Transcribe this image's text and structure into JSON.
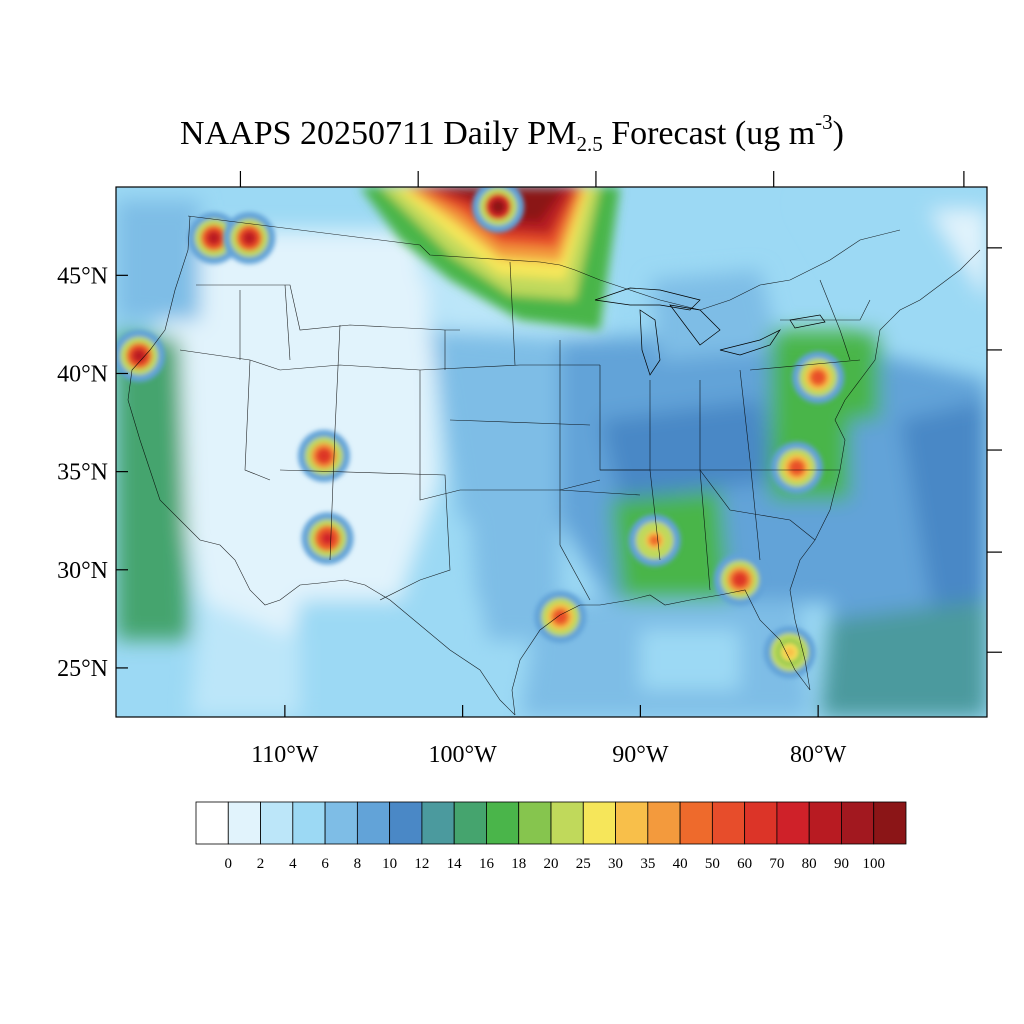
{
  "title": {
    "prefix": "NAAPS 20250711 Daily PM",
    "subscript": "2.5",
    "middle": " Forecast (ug m",
    "superscript": "-3",
    "suffix": ")"
  },
  "map": {
    "lon_range": [
      -119.5,
      -70.5
    ],
    "lat_range": [
      22.5,
      49.5
    ],
    "lon_labels": [
      "110°W",
      "100°W",
      "90°W",
      "80°W"
    ],
    "lat_labels": [
      "45°N",
      "40°N",
      "35°N",
      "30°N",
      "25°N"
    ],
    "field": "Daily PM2.5 forecast concentration",
    "units": "ug m-3",
    "hotspots": [
      {
        "region": "Canadian smoke plume (Manitoba/Ontario border)",
        "lon": -98,
        "lat": 48.5,
        "value": 100
      },
      {
        "region": "Washington",
        "lon": -114,
        "lat": 46.9,
        "value": 80
      },
      {
        "region": "Washington east",
        "lon": -112,
        "lat": 46.9,
        "value": 80
      },
      {
        "region": "Northern California",
        "lon": -118.2,
        "lat": 40.9,
        "value": 80
      },
      {
        "region": "Arizona/New Mexico",
        "lon": -107.6,
        "lat": 31.6,
        "value": 70
      },
      {
        "region": "Arizona north",
        "lon": -107.8,
        "lat": 35.8,
        "value": 60
      },
      {
        "region": "Pennsylvania",
        "lon": -80,
        "lat": 39.8,
        "value": 50
      },
      {
        "region": "North Carolina",
        "lon": -81.2,
        "lat": 35.2,
        "value": 50
      },
      {
        "region": "Mississippi/Alabama",
        "lon": -89.2,
        "lat": 31.5,
        "value": 40
      },
      {
        "region": "Texas coast",
        "lon": -94.5,
        "lat": 27.6,
        "value": 50
      },
      {
        "region": "Georgia",
        "lon": -84.4,
        "lat": 29.5,
        "value": 60
      },
      {
        "region": "Florida",
        "lon": -81.6,
        "lat": 25.8,
        "value": 30
      }
    ]
  },
  "colorbar": {
    "colors": [
      "#ffffff",
      "#e1f3fc",
      "#bce6f9",
      "#9cd9f4",
      "#7ebde6",
      "#62a3d8",
      "#4a88c6",
      "#4b9a9e",
      "#45a46e",
      "#4ab54a",
      "#86c54e",
      "#c0d95b",
      "#f6e65a",
      "#f8bf4a",
      "#f39a3d",
      "#ee6a2c",
      "#e74d2b",
      "#dc3428",
      "#cf2129",
      "#b81b22",
      "#a2181f",
      "#8b1517"
    ],
    "labels": [
      "0",
      "2",
      "4",
      "6",
      "8",
      "10",
      "12",
      "14",
      "16",
      "18",
      "20",
      "25",
      "30",
      "35",
      "40",
      "50",
      "60",
      "70",
      "80",
      "90",
      "100"
    ]
  }
}
